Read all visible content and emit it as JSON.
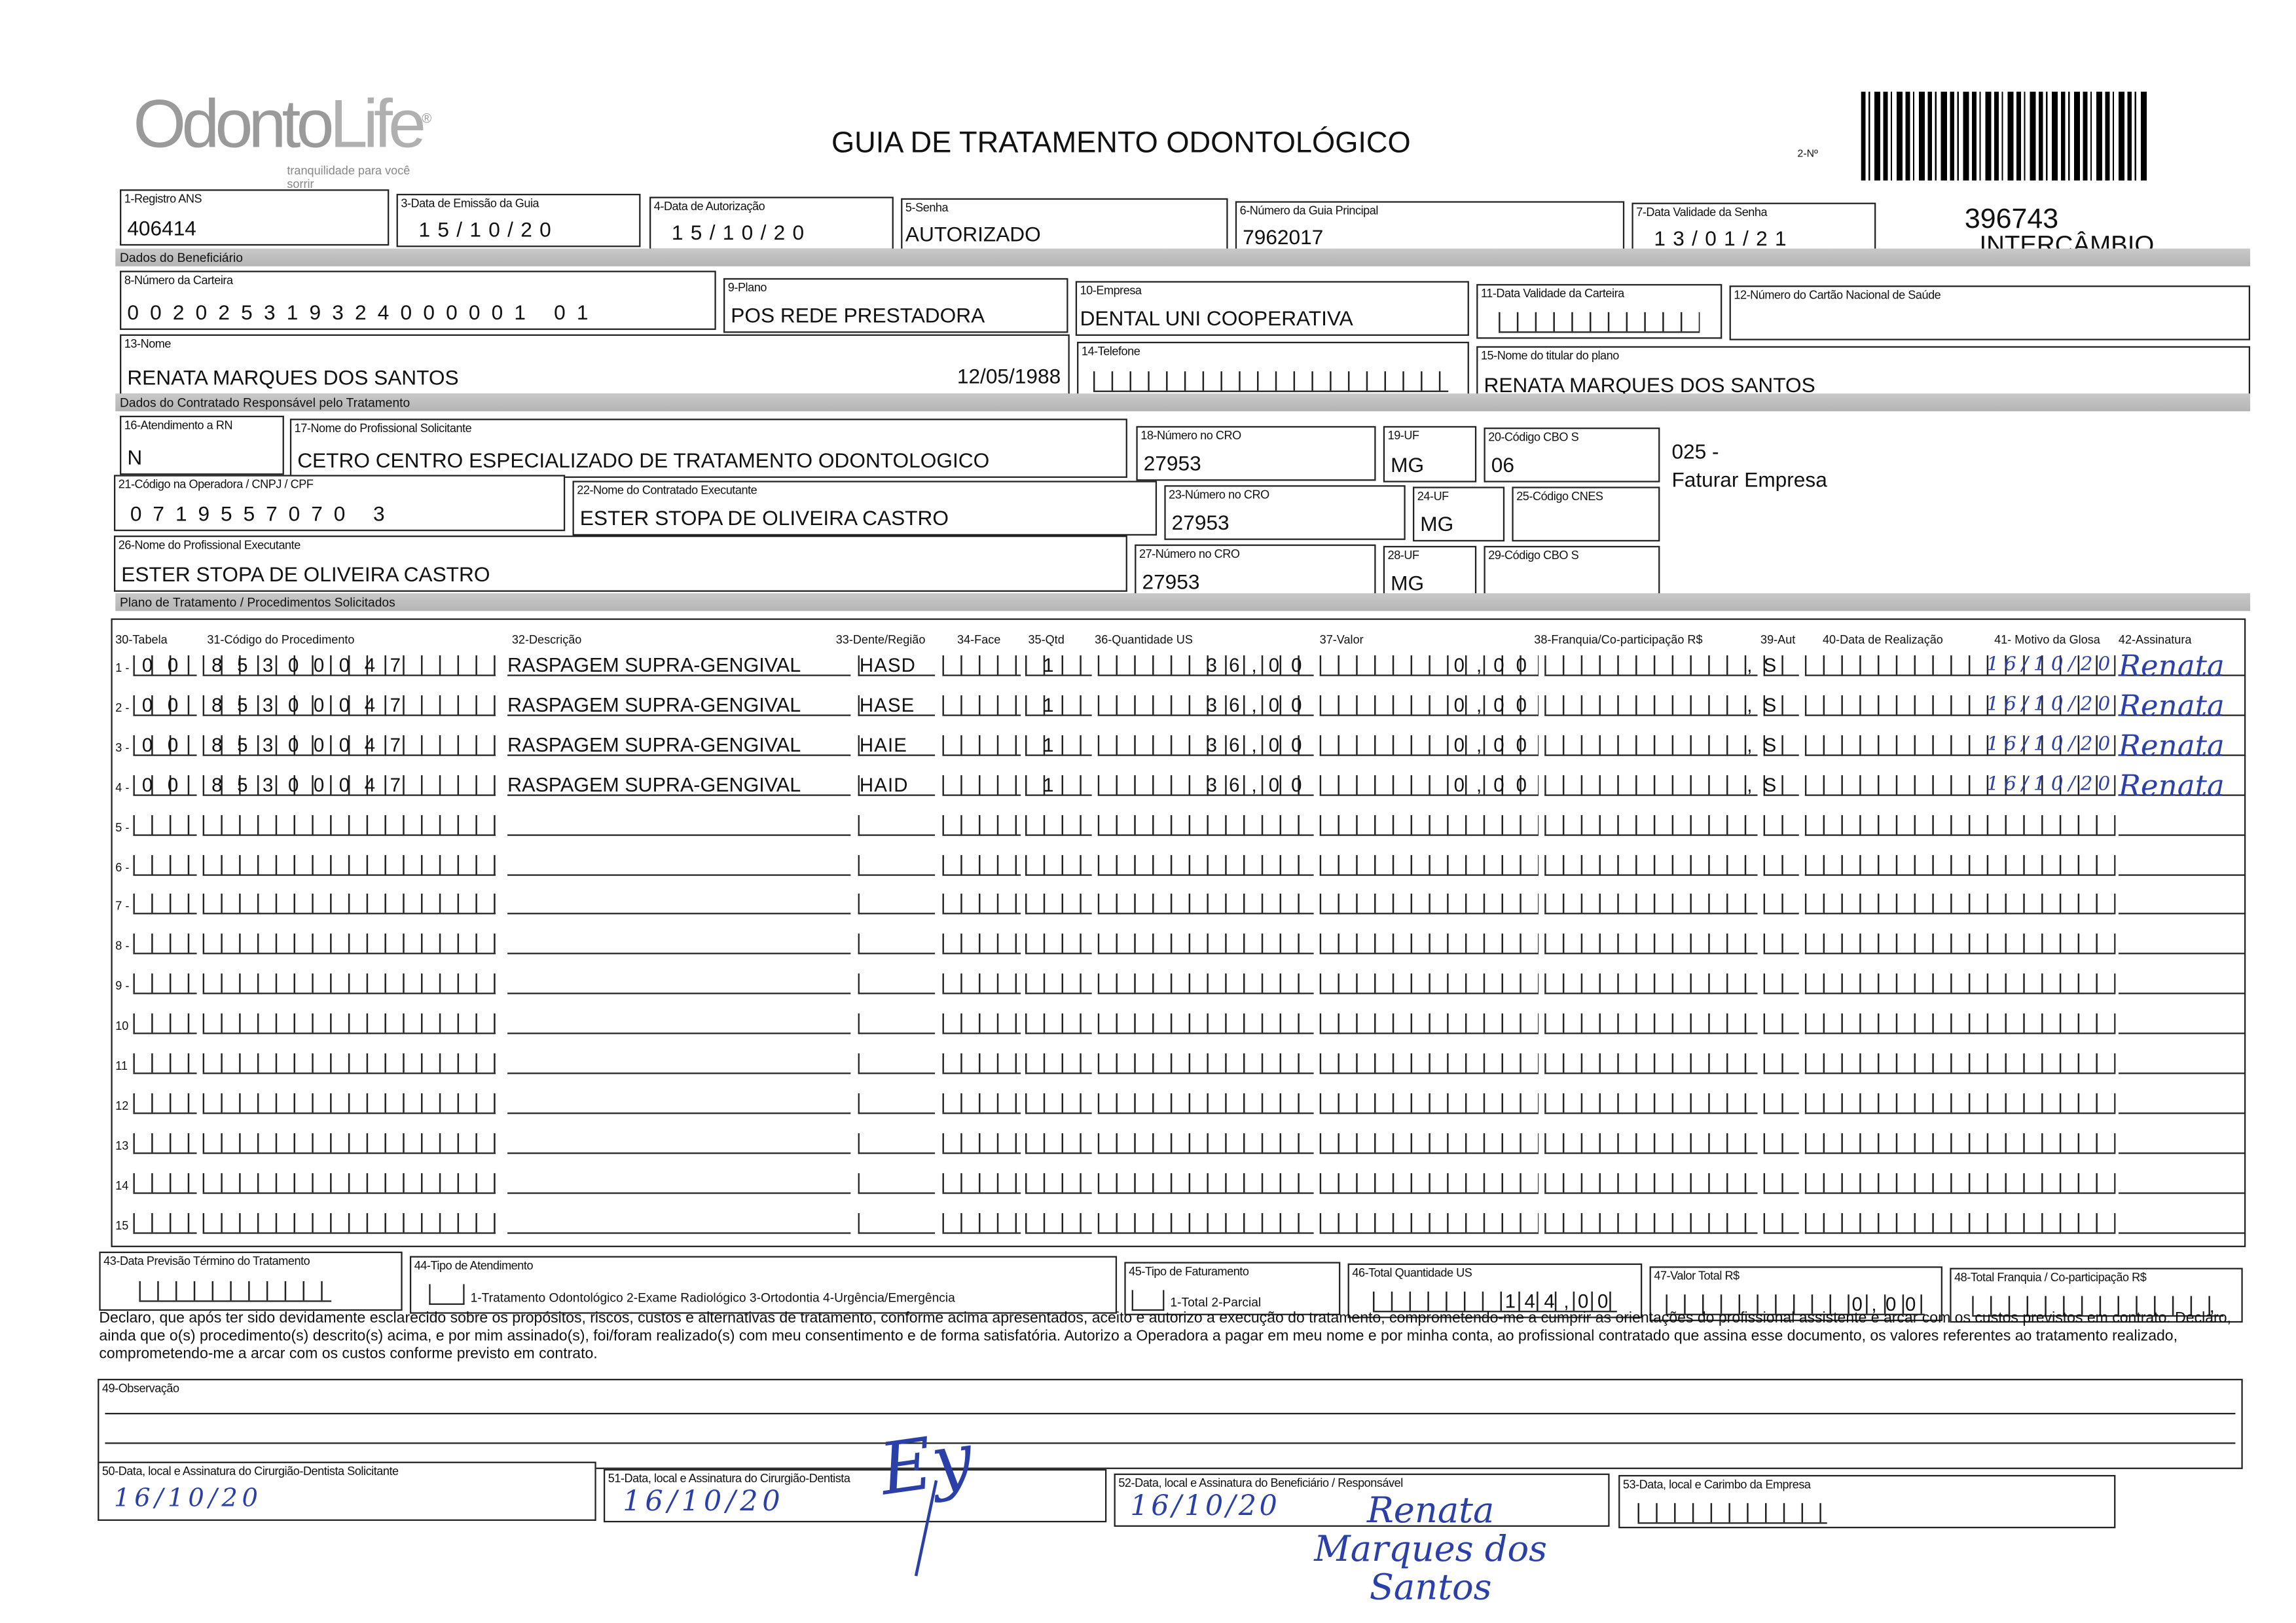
{
  "logo": {
    "brand": "OdontoLife",
    "tagline": "tranquilidade para você sorrir"
  },
  "header": {
    "title": "GUIA DE TRATAMENTO ODONTOLÓGICO",
    "numero_label": "2-Nº",
    "guia_numero": "396743",
    "tipo": "INTERCÂMBIO"
  },
  "fields": {
    "f1": {
      "label": "1-Registro ANS",
      "value": "406414"
    },
    "f3": {
      "label": "3-Data de Emissão da Guia",
      "value": "15/10/20"
    },
    "f4": {
      "label": "4-Data de Autorização",
      "value": "15/10/20"
    },
    "f5": {
      "label": "5-Senha",
      "value": "AUTORIZADO"
    },
    "f6": {
      "label": "6-Número da Guia Principal",
      "value": "7962017"
    },
    "f7": {
      "label": "7-Data Validade da Senha",
      "value": "13/01/21"
    },
    "f8": {
      "label": "8-Número da Carteira",
      "value": "002025319324000001 01"
    },
    "f9": {
      "label": "9-Plano",
      "value": "POS REDE PRESTADORA"
    },
    "f10": {
      "label": "10-Empresa",
      "value": "DENTAL UNI  COOPERATIVA"
    },
    "f11": {
      "label": "11-Data Validade da Carteira",
      "value": "  /  /  "
    },
    "f12": {
      "label": "12-Número do Cartão Nacional de Saúde",
      "value": ""
    },
    "f13": {
      "label": "13-Nome",
      "value": "RENATA MARQUES DOS SANTOS",
      "birth": "12/05/1988"
    },
    "f14": {
      "label": "14-Telefone",
      "value": "(   )     -     "
    },
    "f15": {
      "label": "15-Nome do titular do plano",
      "value": "RENATA MARQUES DOS SANTOS"
    },
    "f16": {
      "label": "16-Atendimento a RN",
      "value": "N"
    },
    "f17": {
      "label": "17-Nome do Profissional Solicitante",
      "value": "CETRO CENTRO ESPECIALIZADO DE TRATAMENTO ODONTOLOGICO"
    },
    "f18": {
      "label": "18-Número no CRO",
      "value": "27953"
    },
    "f19": {
      "label": "19-UF",
      "value": "MG"
    },
    "f20": {
      "label": "20-Código CBO S",
      "value": "06"
    },
    "f20_note1": "025 -",
    "f20_note2": "Faturar Empresa",
    "f21": {
      "label": "21-Código na Operadora / CNPJ / CPF",
      "value": "0719557070 3"
    },
    "f22": {
      "label": "22-Nome do Contratado Executante",
      "value": "ESTER STOPA DE OLIVEIRA CASTRO"
    },
    "f23": {
      "label": "23-Número no CRO",
      "value": "27953"
    },
    "f24": {
      "label": "24-UF",
      "value": "MG"
    },
    "f25": {
      "label": "25-Código CNES",
      "value": ""
    },
    "f26": {
      "label": "26-Nome do Profissional Executante",
      "value": "ESTER STOPA DE OLIVEIRA CASTRO"
    },
    "f27": {
      "label": "27-Número no CRO",
      "value": "27953"
    },
    "f28": {
      "label": "28-UF",
      "value": "MG"
    },
    "f29": {
      "label": "29-Código CBO S",
      "value": ""
    }
  },
  "sections": {
    "beneficiario": "Dados do Beneficiário",
    "contratado": "Dados do Contratado Responsável pelo Tratamento",
    "plano": "Plano de Tratamento / Procedimentos Solicitados"
  },
  "table": {
    "headers": [
      "30-Tabela",
      "31-Código do Procedimento",
      "32-Descrição",
      "33-Dente/Região",
      "34-Face",
      "35-Qtd",
      "36-Quantidade US",
      "37-Valor",
      "38-Franquia/Co-participação R$",
      "39-Aut",
      "40-Data de Realização",
      "41- Motivo da Glosa",
      "42-Assinatura"
    ],
    "rows": [
      {
        "n": "1 -",
        "tabela": "00",
        "codigo": "85300047",
        "descricao": "RASPAGEM SUPRA-GENGIVAL",
        "dente": "HASD",
        "face": "",
        "qtd": "1",
        "us": "36,00",
        "valor": "0,00",
        "franquia": ",",
        "aut": "S",
        "data": "16/10/20",
        "assinatura": "Renata"
      },
      {
        "n": "2 -",
        "tabela": "00",
        "codigo": "85300047",
        "descricao": "RASPAGEM SUPRA-GENGIVAL",
        "dente": "HASE",
        "face": "",
        "qtd": "1",
        "us": "36,00",
        "valor": "0,00",
        "franquia": ",",
        "aut": "S",
        "data": "16/10/20",
        "assinatura": "Renata"
      },
      {
        "n": "3 -",
        "tabela": "00",
        "codigo": "85300047",
        "descricao": "RASPAGEM SUPRA-GENGIVAL",
        "dente": "HAIE",
        "face": "",
        "qtd": "1",
        "us": "36,00",
        "valor": "0,00",
        "franquia": ",",
        "aut": "S",
        "data": "16/10/20",
        "assinatura": "Renata"
      },
      {
        "n": "4 -",
        "tabela": "00",
        "codigo": "85300047",
        "descricao": "RASPAGEM SUPRA-GENGIVAL",
        "dente": "HAID",
        "face": "",
        "qtd": "1",
        "us": "36,00",
        "valor": "0,00",
        "franquia": ",",
        "aut": "S",
        "data": "16/10/20",
        "assinatura": "Renata"
      },
      {
        "n": "5 -"
      },
      {
        "n": "6 -"
      },
      {
        "n": "7 -"
      },
      {
        "n": "8 -"
      },
      {
        "n": "9 -"
      },
      {
        "n": "10"
      },
      {
        "n": "11"
      },
      {
        "n": "12"
      },
      {
        "n": "13"
      },
      {
        "n": "14"
      },
      {
        "n": "15"
      }
    ]
  },
  "footer": {
    "f43": {
      "label": "43-Data Previsão Término do Tratamento",
      "value": "  /  /  "
    },
    "f44": {
      "label": "44-Tipo de Atendimento",
      "options": "1-Tratamento Odontológico  2-Exame Radiológico  3-Ortodontia  4-Urgência/Emergência"
    },
    "f45": {
      "label": "45-Tipo de Faturamento",
      "options": "1-Total  2-Parcial"
    },
    "f46": {
      "label": "46-Total Quantidade US",
      "value": "144,00"
    },
    "f47": {
      "label": "47-Valor Total R$",
      "value": "0,00"
    },
    "f48": {
      "label": "48-Total Franquia / Co-participação R$",
      "value": ","
    },
    "declaration": "Declaro, que após ter sido devidamente esclarecido sobre os propósitos, riscos, custos e alternativas de tratamento, conforme acima apresentados, aceito e autorizo a execução do tratamento, comprometendo-me a cumprir as orientações do profissional assistente e arcar com os custos previstos em contrato. Declaro, ainda que o(s) procedimento(s) descrito(s) acima, e por mim assinado(s), foi/foram realizado(s) com meu consentimento e de forma satisfatória. Autorizo a Operadora a pagar em meu nome e por minha conta, ao profissional contratado que assina esse documento, os valores referentes ao tratamento realizado, comprometendo-me a arcar com os custos conforme previsto em contrato.",
    "f49": {
      "label": "49-Observação",
      "value": ""
    },
    "f50": {
      "label": "50-Data, local e Assinatura do Cirurgião-Dentista Solicitante",
      "date": "16/10/20"
    },
    "f51": {
      "label": "51-Data, local e Assinatura do Cirurgião-Dentista",
      "date": "16/10/20",
      "signature": "Ey"
    },
    "f52": {
      "label": "52-Data, local e Assinatura do Beneficiário / Responsável",
      "date": "16/10/20",
      "signature": "Renata Marques dos Santos"
    },
    "f53": {
      "label": "53-Data, local e Carimbo da Empresa",
      "value": "  /  /  "
    }
  },
  "colors": {
    "ink": "#111111",
    "handwriting": "#2a3fa8",
    "section_bar": "#bdbdbd"
  }
}
